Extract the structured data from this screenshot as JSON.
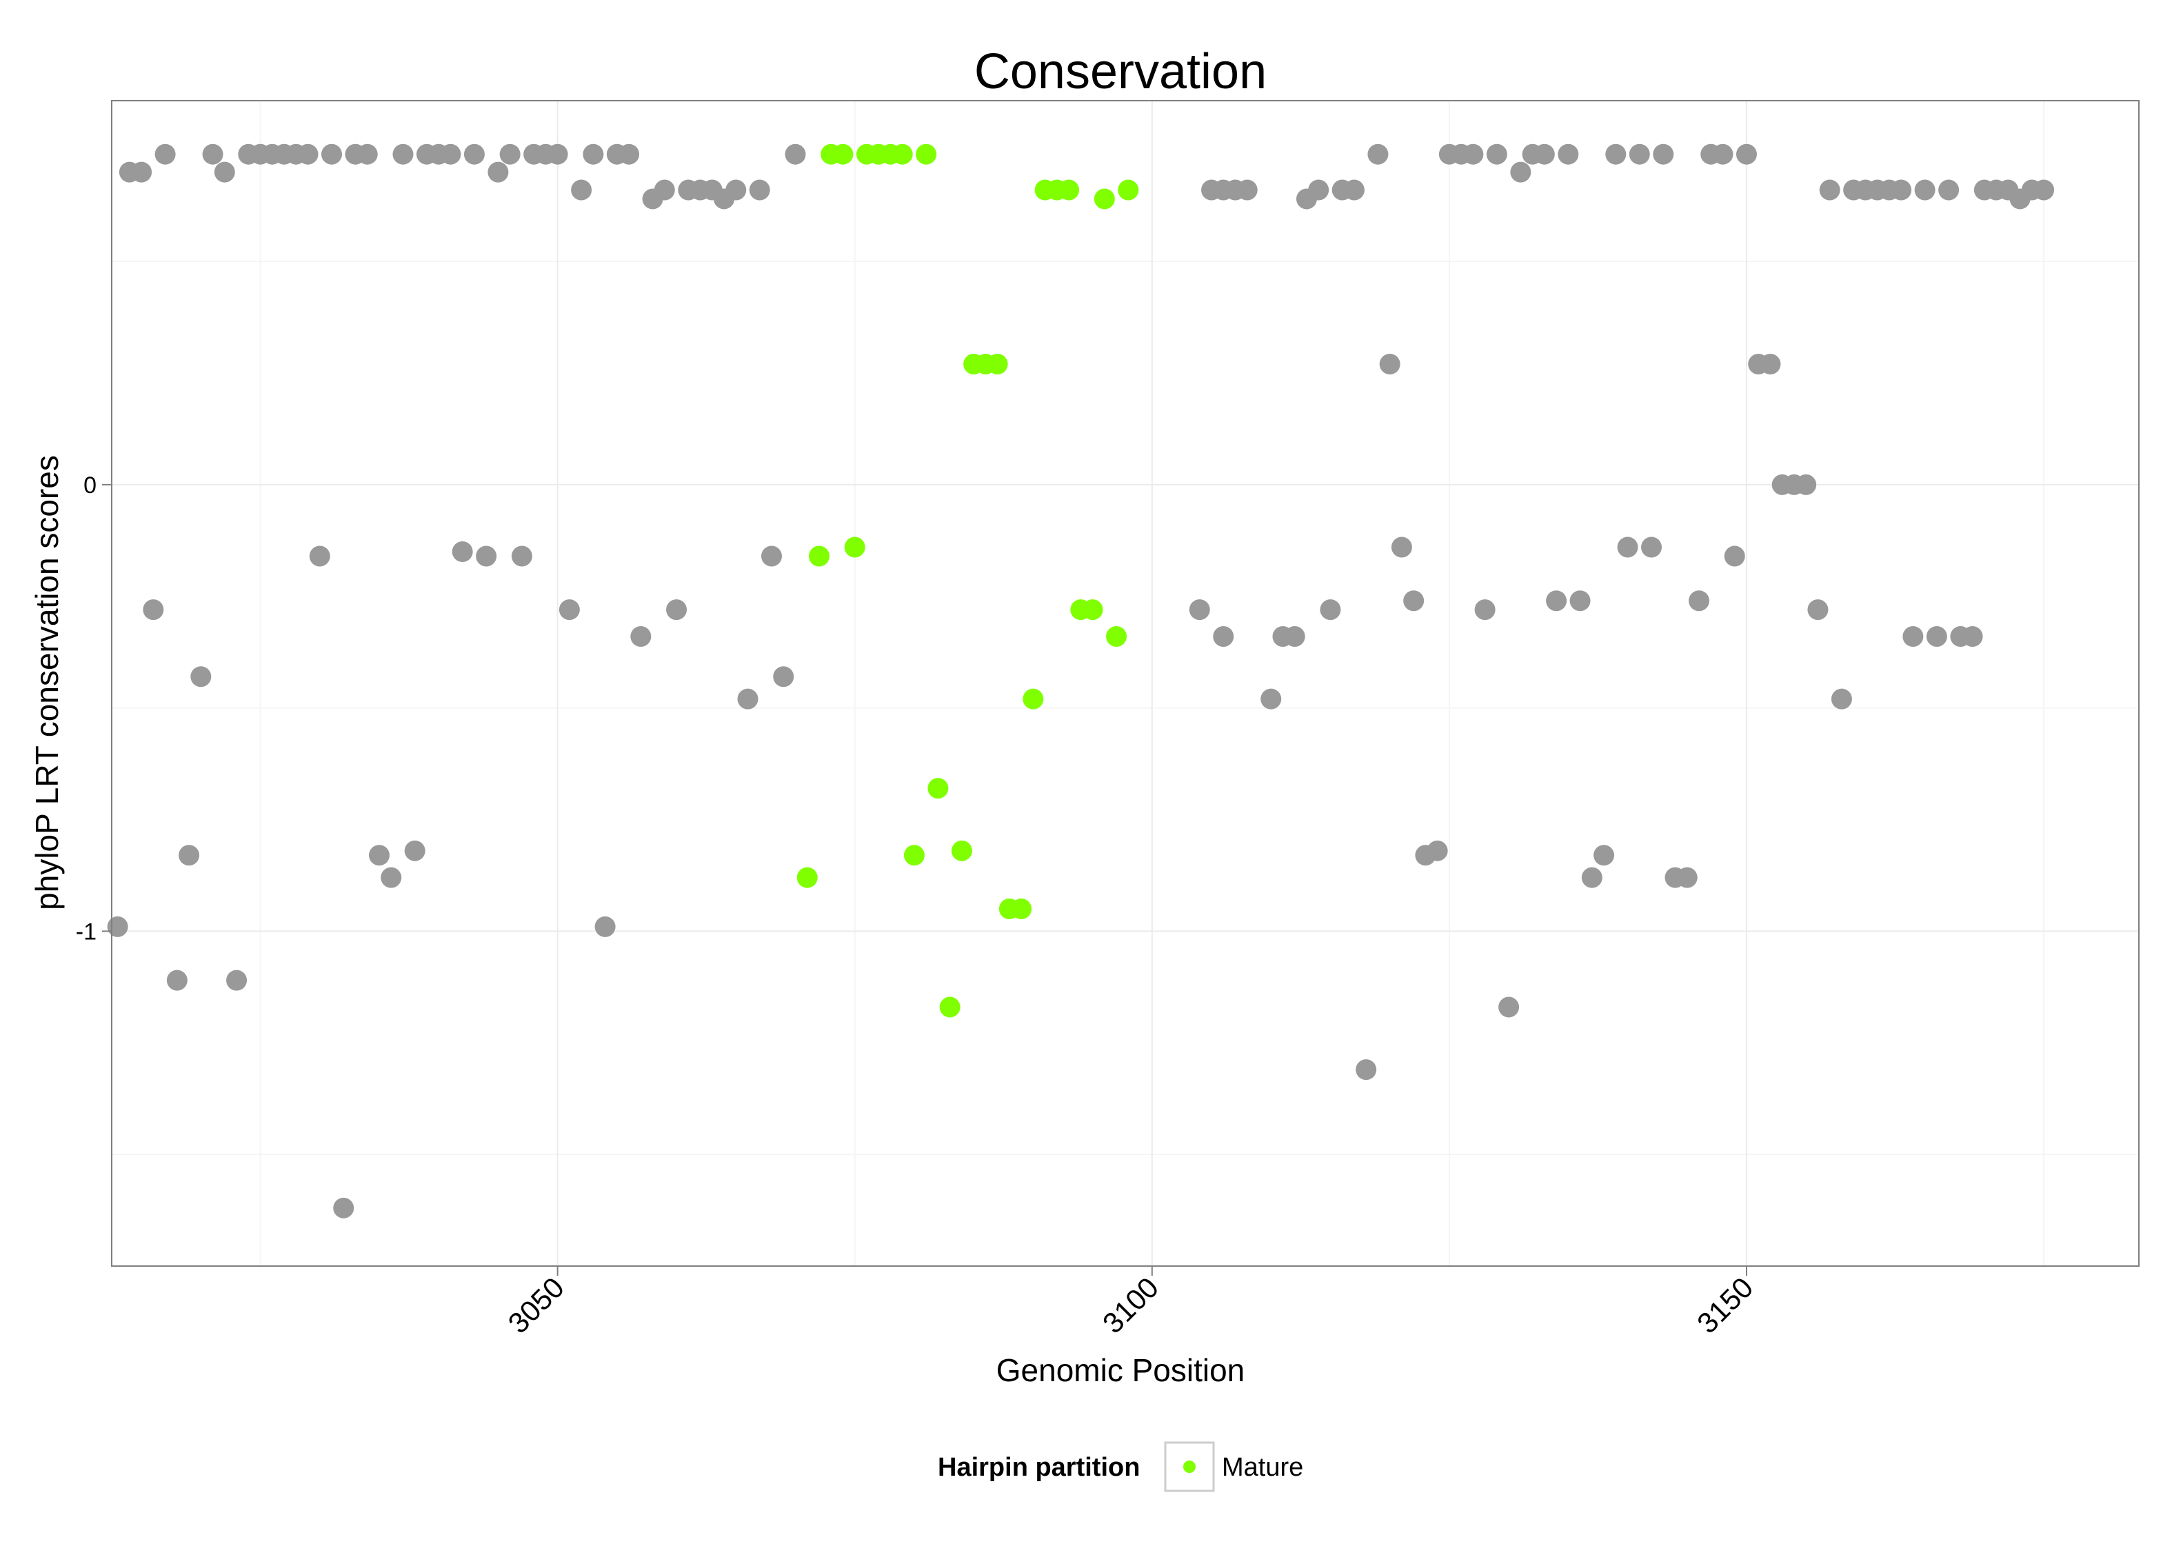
{
  "chart_data": {
    "type": "scatter",
    "title": "Conservation",
    "xlabel": "Genomic Position",
    "ylabel": "phyloP LRT conservation scores",
    "xlim": [
      3012.5,
      3183
    ],
    "ylim": [
      -1.75,
      0.86
    ],
    "x_ticks": [
      3050,
      3100,
      3150
    ],
    "y_ticks": [
      -1,
      0
    ],
    "grid": true,
    "legend": {
      "position": "bottom",
      "title": "Hairpin partition",
      "entries": [
        {
          "label": "Mature",
          "color": "#7FFF00"
        }
      ]
    },
    "colors": {
      "other": "#999999",
      "mature": "#7FFF00"
    },
    "series": [
      {
        "group": "other",
        "points": [
          [
            3013,
            -0.99
          ],
          [
            3014,
            0.7
          ],
          [
            3015,
            0.7
          ],
          [
            3016,
            -0.28
          ],
          [
            3017,
            0.74
          ],
          [
            3018,
            -1.11
          ],
          [
            3019,
            -0.83
          ],
          [
            3020,
            -0.43
          ],
          [
            3021,
            0.74
          ],
          [
            3022,
            0.7
          ],
          [
            3023,
            -1.11
          ],
          [
            3024,
            0.74
          ],
          [
            3025,
            0.74
          ],
          [
            3026,
            0.74
          ],
          [
            3027,
            0.74
          ],
          [
            3028,
            0.74
          ],
          [
            3029,
            0.74
          ],
          [
            3030,
            -0.16
          ],
          [
            3031,
            0.74
          ],
          [
            3032,
            -1.62
          ],
          [
            3033,
            0.74
          ],
          [
            3034,
            0.74
          ],
          [
            3035,
            -0.83
          ],
          [
            3036,
            -0.88
          ],
          [
            3037,
            0.74
          ],
          [
            3038,
            -0.82
          ],
          [
            3039,
            0.74
          ],
          [
            3040,
            0.74
          ],
          [
            3041,
            0.74
          ],
          [
            3042,
            -0.15
          ],
          [
            3043,
            0.74
          ],
          [
            3044,
            -0.16
          ],
          [
            3045,
            0.7
          ],
          [
            3046,
            0.74
          ],
          [
            3047,
            -0.16
          ],
          [
            3048,
            0.74
          ],
          [
            3049,
            0.74
          ],
          [
            3050,
            0.74
          ],
          [
            3051,
            -0.28
          ],
          [
            3052,
            0.66
          ],
          [
            3053,
            0.74
          ],
          [
            3054,
            -0.99
          ],
          [
            3055,
            0.74
          ],
          [
            3056,
            0.74
          ],
          [
            3057,
            -0.34
          ],
          [
            3058,
            0.64
          ],
          [
            3059,
            0.66
          ],
          [
            3060,
            -0.28
          ],
          [
            3061,
            0.66
          ],
          [
            3062,
            0.66
          ],
          [
            3063,
            0.66
          ],
          [
            3064,
            0.64
          ],
          [
            3065,
            0.66
          ],
          [
            3066,
            -0.48
          ],
          [
            3067,
            0.66
          ],
          [
            3068,
            -0.16
          ],
          [
            3069,
            -0.43
          ],
          [
            3070,
            0.74
          ],
          [
            3104,
            -0.28
          ],
          [
            3105,
            0.66
          ],
          [
            3106,
            -0.34
          ],
          [
            3106,
            0.66
          ],
          [
            3107,
            0.66
          ],
          [
            3108,
            0.66
          ],
          [
            3110,
            -0.48
          ],
          [
            3111,
            -0.34
          ],
          [
            3112,
            -0.34
          ],
          [
            3113,
            0.64
          ],
          [
            3114,
            0.66
          ],
          [
            3115,
            -0.28
          ],
          [
            3116,
            0.66
          ],
          [
            3117,
            0.66
          ],
          [
            3118,
            -1.31
          ],
          [
            3119,
            0.74
          ],
          [
            3120,
            0.27
          ],
          [
            3121,
            -0.14
          ],
          [
            3122,
            -0.26
          ],
          [
            3123,
            -0.83
          ],
          [
            3124,
            -0.82
          ],
          [
            3125,
            0.74
          ],
          [
            3126,
            0.74
          ],
          [
            3127,
            0.74
          ],
          [
            3128,
            -0.28
          ],
          [
            3129,
            0.74
          ],
          [
            3130,
            -1.17
          ],
          [
            3131,
            0.7
          ],
          [
            3132,
            0.74
          ],
          [
            3133,
            0.74
          ],
          [
            3134,
            -0.26
          ],
          [
            3135,
            0.74
          ],
          [
            3136,
            -0.26
          ],
          [
            3137,
            -0.88
          ],
          [
            3138,
            -0.83
          ],
          [
            3139,
            0.74
          ],
          [
            3140,
            -0.14
          ],
          [
            3141,
            0.74
          ],
          [
            3142,
            -0.14
          ],
          [
            3143,
            0.74
          ],
          [
            3144,
            -0.88
          ],
          [
            3145,
            -0.88
          ],
          [
            3146,
            -0.26
          ],
          [
            3147,
            0.74
          ],
          [
            3148,
            0.74
          ],
          [
            3149,
            -0.16
          ],
          [
            3150,
            0.74
          ],
          [
            3151,
            0.27
          ],
          [
            3152,
            0.27
          ],
          [
            3153,
            0.0
          ],
          [
            3154,
            0.0
          ],
          [
            3155,
            0.0
          ],
          [
            3156,
            -0.28
          ],
          [
            3157,
            0.66
          ],
          [
            3158,
            -0.48
          ],
          [
            3159,
            0.66
          ],
          [
            3160,
            0.66
          ],
          [
            3161,
            0.66
          ],
          [
            3162,
            0.66
          ],
          [
            3163,
            0.66
          ],
          [
            3164,
            -0.34
          ],
          [
            3165,
            0.66
          ],
          [
            3166,
            -0.34
          ],
          [
            3167,
            0.66
          ],
          [
            3168,
            -0.34
          ],
          [
            3169,
            -0.34
          ],
          [
            3170,
            0.66
          ],
          [
            3171,
            0.66
          ],
          [
            3172,
            0.66
          ],
          [
            3173,
            0.64
          ],
          [
            3174,
            0.66
          ],
          [
            3175,
            0.66
          ]
        ]
      },
      {
        "group": "mature",
        "name": "Mature",
        "points": [
          [
            3071,
            -0.88
          ],
          [
            3072,
            -0.16
          ],
          [
            3073,
            0.74
          ],
          [
            3074,
            0.74
          ],
          [
            3075,
            -0.14
          ],
          [
            3076,
            0.74
          ],
          [
            3077,
            0.74
          ],
          [
            3078,
            0.74
          ],
          [
            3079,
            0.74
          ],
          [
            3080,
            -0.83
          ],
          [
            3081,
            0.74
          ],
          [
            3082,
            -0.68
          ],
          [
            3083,
            -1.17
          ],
          [
            3084,
            -0.82
          ],
          [
            3085,
            0.27
          ],
          [
            3086,
            0.27
          ],
          [
            3087,
            0.27
          ],
          [
            3088,
            -0.95
          ],
          [
            3089,
            -0.95
          ],
          [
            3090,
            -0.48
          ],
          [
            3091,
            0.66
          ],
          [
            3092,
            0.66
          ],
          [
            3093,
            0.66
          ],
          [
            3094,
            -0.28
          ],
          [
            3095,
            -0.28
          ],
          [
            3096,
            0.64
          ],
          [
            3097,
            -0.34
          ],
          [
            3098,
            0.66
          ]
        ]
      }
    ]
  }
}
